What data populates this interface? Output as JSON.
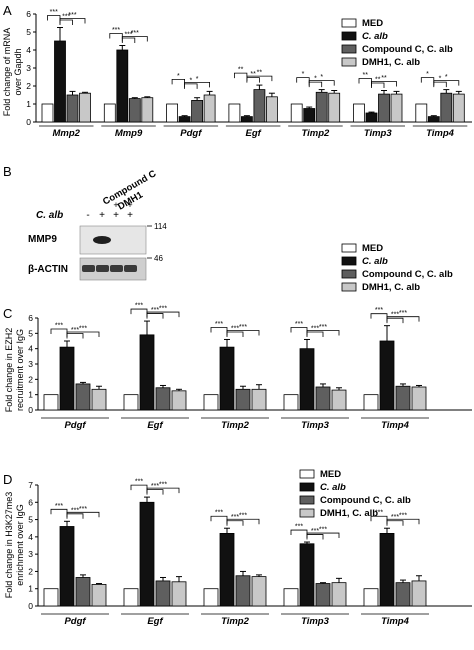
{
  "legend_labels": [
    "MED",
    "C. alb",
    "Compound C, C. alb",
    "DMH1, C. alb"
  ],
  "legend_colors": [
    "#ffffff",
    "#111111",
    "#5f5f5f",
    "#c8c8c8"
  ],
  "sig_marker": "*",
  "panels": {
    "a": {
      "letter": "A",
      "ylabel": [
        "Fold change of mRNA",
        "over Gapdh"
      ],
      "yticks": [
        "0",
        "1",
        "2",
        "3",
        "4",
        "5",
        "6"
      ],
      "chart_data": {
        "type": "bar",
        "ylim": [
          0,
          6
        ],
        "categories": [
          "Mmp2",
          "Mmp9",
          "Pdgf",
          "Egf",
          "Timp2",
          "Timp3",
          "Timp4"
        ],
        "series": [
          {
            "name": "MED",
            "values": [
              1,
              1,
              1,
              1,
              1,
              1,
              1
            ]
          },
          {
            "name": "C. alb",
            "values": [
              4.5,
              4.0,
              0.3,
              0.3,
              0.75,
              0.5,
              0.3
            ]
          },
          {
            "name": "Compound C, C. alb",
            "values": [
              1.5,
              1.3,
              1.2,
              1.8,
              1.65,
              1.55,
              1.6
            ]
          },
          {
            "name": "DMH1, C. alb",
            "values": [
              1.6,
              1.35,
              1.5,
              1.4,
              1.6,
              1.55,
              1.55
            ]
          }
        ],
        "errors": [
          [
            0,
            0,
            0,
            0,
            0,
            0,
            0
          ],
          [
            0.75,
            0.25,
            0.05,
            0.05,
            0.08,
            0.05,
            0.05
          ],
          [
            0.2,
            0.05,
            0.15,
            0.25,
            0.15,
            0.2,
            0.2
          ],
          [
            0.05,
            0.05,
            0.2,
            0.2,
            0.15,
            0.15,
            0.15
          ]
        ],
        "significance": [
          "***",
          "***",
          "*",
          "**",
          "*",
          "**",
          "*"
        ]
      }
    },
    "c": {
      "letter": "C",
      "ylabel": [
        "Fold change in EZH2",
        "recruitment over IgG"
      ],
      "yticks": [
        "0",
        "1",
        "2",
        "3",
        "4",
        "5",
        "6"
      ],
      "chart_data": {
        "type": "bar",
        "ylim": [
          0,
          6
        ],
        "categories": [
          "Pdgf",
          "Egf",
          "Timp2",
          "Timp3",
          "Timp4"
        ],
        "series": [
          {
            "name": "MED",
            "values": [
              1,
              1,
              1,
              1,
              1
            ]
          },
          {
            "name": "C. alb",
            "values": [
              4.1,
              4.9,
              4.1,
              4.0,
              4.5
            ]
          },
          {
            "name": "Compound C, C. alb",
            "values": [
              1.7,
              1.45,
              1.35,
              1.5,
              1.55
            ]
          },
          {
            "name": "DMH1, C. alb",
            "values": [
              1.35,
              1.25,
              1.35,
              1.3,
              1.5
            ]
          }
        ],
        "errors": [
          [
            0,
            0,
            0,
            0,
            0
          ],
          [
            0.4,
            0.9,
            0.5,
            0.6,
            1.0
          ],
          [
            0.1,
            0.15,
            0.2,
            0.2,
            0.15
          ],
          [
            0.2,
            0.1,
            0.3,
            0.15,
            0.1
          ]
        ],
        "significance": [
          "***",
          "***",
          "***",
          "***",
          "***"
        ]
      }
    },
    "d": {
      "letter": "D",
      "ylabel": [
        "Fold change in H3K27me3",
        "enrichment over IgG"
      ],
      "yticks": [
        "0",
        "1",
        "2",
        "3",
        "4",
        "5",
        "6",
        "7"
      ],
      "chart_data": {
        "type": "bar",
        "ylim": [
          0,
          7
        ],
        "categories": [
          "Pdgf",
          "Egf",
          "Timp2",
          "Timp3",
          "Timp4"
        ],
        "series": [
          {
            "name": "MED",
            "values": [
              1,
              1,
              1,
              1,
              1
            ]
          },
          {
            "name": "C. alb",
            "values": [
              4.6,
              6.0,
              4.2,
              3.6,
              4.2
            ]
          },
          {
            "name": "Compound C, C. alb",
            "values": [
              1.65,
              1.45,
              1.75,
              1.3,
              1.35
            ]
          },
          {
            "name": "DMH1, C. alb",
            "values": [
              1.25,
              1.4,
              1.7,
              1.35,
              1.45
            ]
          }
        ],
        "errors": [
          [
            0,
            0,
            0,
            0,
            0
          ],
          [
            0.3,
            0.3,
            0.3,
            0.1,
            0.3
          ],
          [
            0.15,
            0.2,
            0.25,
            0.05,
            0.15
          ],
          [
            0.05,
            0.3,
            0.1,
            0.25,
            0.3
          ]
        ],
        "significance": [
          "***",
          "***",
          "***",
          "***",
          "***"
        ]
      }
    }
  },
  "blot": {
    "letter": "B",
    "treatment_label": "C. alb",
    "lane_signs": [
      "-",
      "+",
      "+",
      "+"
    ],
    "inhibitor_signs": [
      "-",
      "-",
      "+",
      "+"
    ],
    "column_labels": [
      "Compound C",
      "DMH1"
    ],
    "rows": [
      {
        "label": "MMP9",
        "marker": "114"
      },
      {
        "label": "β-ACTIN",
        "marker": "46"
      }
    ]
  }
}
